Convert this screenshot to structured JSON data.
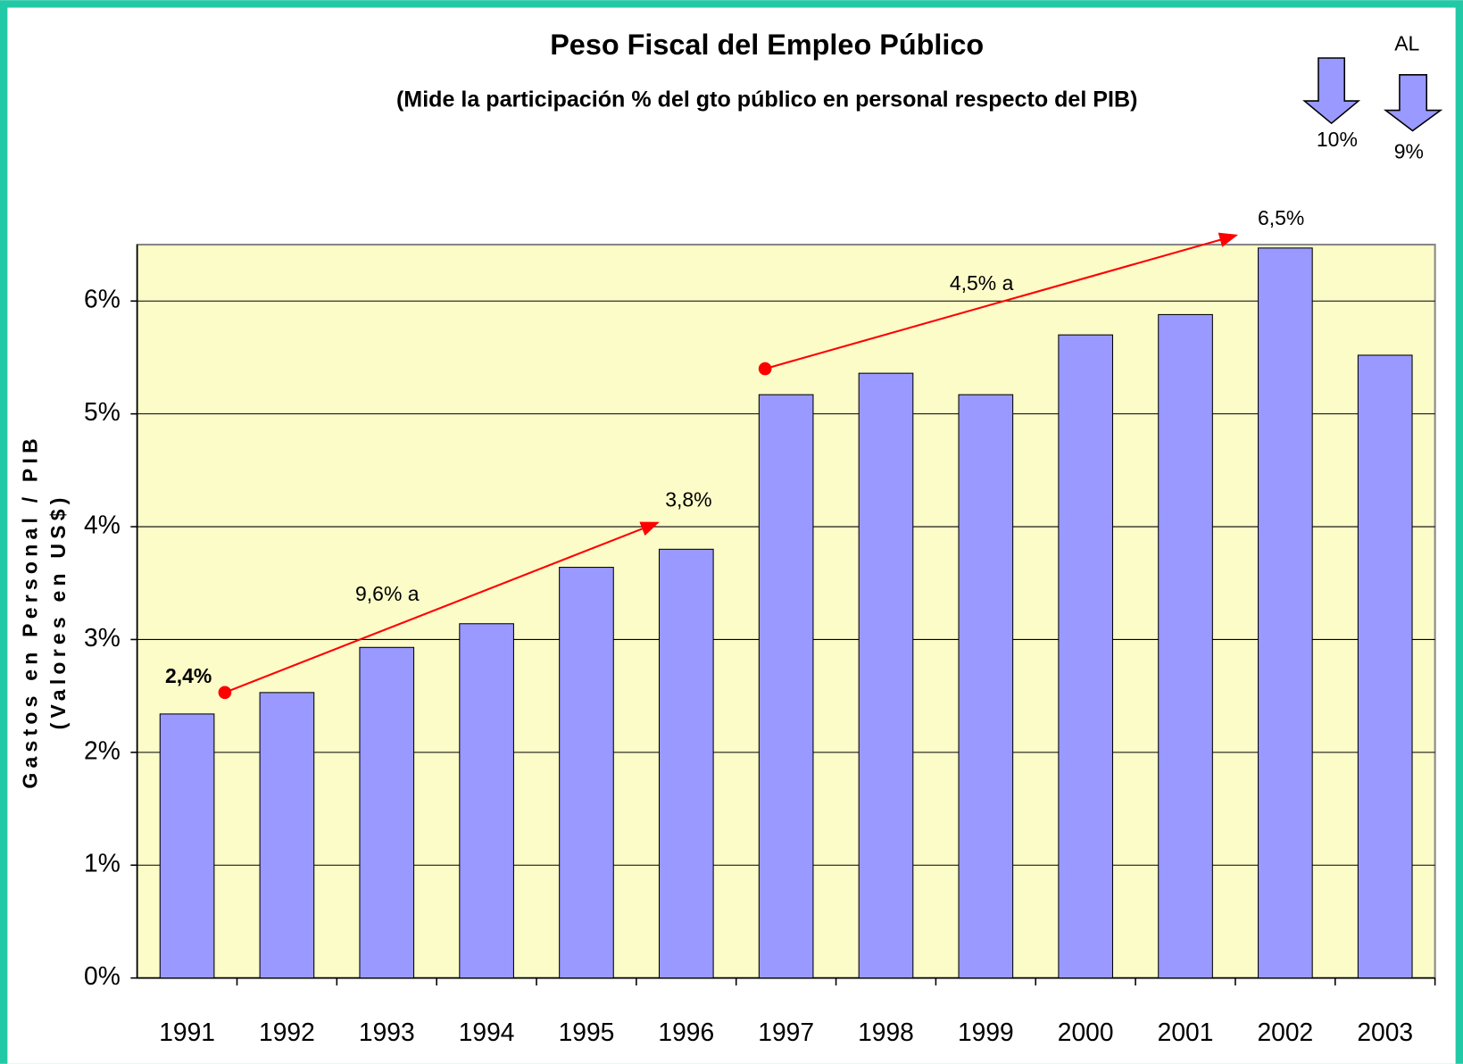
{
  "chart_data": {
    "type": "bar",
    "title": "Peso Fiscal del Empleo Público",
    "subtitle": "(Mide la participación % del gto público en personal respecto del PIB)",
    "y_label": [
      "Gastos en Personal / PIB",
      "(Valores en US$)"
    ],
    "categories": [
      "1991",
      "1992",
      "1993",
      "1994",
      "1995",
      "1996",
      "1997",
      "1998",
      "1999",
      "2000",
      "2001",
      "2002",
      "2003"
    ],
    "values": [
      2.34,
      2.53,
      2.93,
      3.14,
      3.64,
      3.8,
      5.17,
      5.36,
      5.17,
      5.7,
      5.88,
      6.47,
      5.52
    ],
    "color": "#9999ff",
    "ylim": [
      0,
      6.5
    ],
    "yticks": [
      {
        "value": 0,
        "label": "0%"
      },
      {
        "value": 1,
        "label": "1%"
      },
      {
        "value": 2,
        "label": "2%"
      },
      {
        "value": 3,
        "label": "3%"
      },
      {
        "value": 4,
        "label": "4%"
      },
      {
        "value": 5,
        "label": "5%"
      },
      {
        "value": 6,
        "label": "6%"
      }
    ],
    "grid": true,
    "annotations": [
      "2,4%",
      "9,6% a",
      "3,8%",
      "4,5% a",
      "6,5%",
      "AL",
      "10%",
      "9%"
    ]
  }
}
